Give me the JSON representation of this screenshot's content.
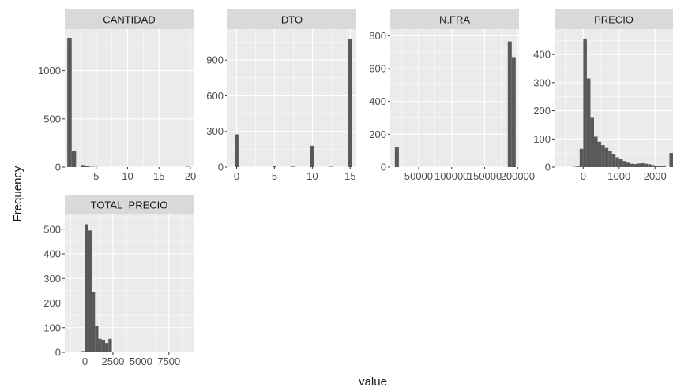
{
  "chart_data": {
    "type": "bar",
    "figure_type": "faceted histogram",
    "xlabel": "value",
    "ylabel": "Frequency",
    "grid": true,
    "facets": [
      {
        "name": "CANTIDAD",
        "xlim": [
          0,
          20.5
        ],
        "ylim": [
          0,
          1430
        ],
        "x_ticks": [
          {
            "v": 5,
            "label": "5"
          },
          {
            "v": 10,
            "label": "10"
          },
          {
            "v": 15,
            "label": "15"
          },
          {
            "v": 20,
            "label": "20"
          }
        ],
        "y_ticks": [
          {
            "v": 0,
            "label": "0"
          },
          {
            "v": 500,
            "label": "500"
          },
          {
            "v": 1000,
            "label": "1000"
          }
        ],
        "bins": [
          {
            "x0": 0.4,
            "x1": 1.1,
            "count": 1340
          },
          {
            "x0": 1.1,
            "x1": 1.8,
            "count": 165
          },
          {
            "x0": 1.8,
            "x1": 2.5,
            "count": 0
          },
          {
            "x0": 2.5,
            "x1": 3.2,
            "count": 22
          },
          {
            "x0": 3.2,
            "x1": 3.9,
            "count": 12
          },
          {
            "x0": 3.9,
            "x1": 4.6,
            "count": 3
          },
          {
            "x0": 4.6,
            "x1": 5.3,
            "count": 2
          },
          {
            "x0": 19.2,
            "x1": 19.9,
            "count": 3
          }
        ]
      },
      {
        "name": "DTO",
        "xlim": [
          -1.2,
          15.8
        ],
        "ylim": [
          0,
          1160
        ],
        "x_ticks": [
          {
            "v": 0,
            "label": "0"
          },
          {
            "v": 5,
            "label": "5"
          },
          {
            "v": 10,
            "label": "10"
          },
          {
            "v": 15,
            "label": "15"
          }
        ],
        "y_ticks": [
          {
            "v": 0,
            "label": "0"
          },
          {
            "v": 300,
            "label": "300"
          },
          {
            "v": 600,
            "label": "600"
          },
          {
            "v": 900,
            "label": "900"
          }
        ],
        "bins": [
          {
            "x0": -0.25,
            "x1": 0.25,
            "count": 275
          },
          {
            "x0": 4.75,
            "x1": 5.25,
            "count": 10
          },
          {
            "x0": 7.25,
            "x1": 7.75,
            "count": 4
          },
          {
            "x0": 9.75,
            "x1": 10.25,
            "count": 180
          },
          {
            "x0": 12.25,
            "x1": 12.75,
            "count": 3
          },
          {
            "x0": 14.75,
            "x1": 15.25,
            "count": 1075
          }
        ]
      },
      {
        "name": "N.FRA",
        "xlim": [
          7000,
          202000
        ],
        "ylim": [
          0,
          840
        ],
        "x_ticks": [
          {
            "v": 50000,
            "label": "50000"
          },
          {
            "v": 100000,
            "label": "100000"
          },
          {
            "v": 150000,
            "label": "150000"
          },
          {
            "v": 200000,
            "label": "200000"
          }
        ],
        "y_ticks": [
          {
            "v": 0,
            "label": "0"
          },
          {
            "v": 200,
            "label": "200"
          },
          {
            "v": 400,
            "label": "400"
          },
          {
            "v": 600,
            "label": "600"
          },
          {
            "v": 800,
            "label": "800"
          }
        ],
        "bins": [
          {
            "x0": 14000,
            "x1": 20000,
            "count": 120
          },
          {
            "x0": 185000,
            "x1": 191000,
            "count": 765
          },
          {
            "x0": 191000,
            "x1": 197000,
            "count": 670
          }
        ]
      },
      {
        "name": "PRECIO",
        "xlim": [
          -800,
          2500
        ],
        "ylim": [
          0,
          490
        ],
        "x_ticks": [
          {
            "v": 0,
            "label": "0"
          },
          {
            "v": 1000,
            "label": "1000"
          },
          {
            "v": 2000,
            "label": "2000"
          }
        ],
        "y_ticks": [
          {
            "v": 0,
            "label": "0"
          },
          {
            "v": 100,
            "label": "100"
          },
          {
            "v": 200,
            "label": "200"
          },
          {
            "v": 300,
            "label": "300"
          },
          {
            "v": 400,
            "label": "400"
          }
        ],
        "bins": [
          {
            "x0": -300,
            "x1": -200,
            "count": 1
          },
          {
            "x0": -200,
            "x1": -100,
            "count": 2
          },
          {
            "x0": -100,
            "x1": 0,
            "count": 65
          },
          {
            "x0": 0,
            "x1": 100,
            "count": 455
          },
          {
            "x0": 100,
            "x1": 200,
            "count": 315
          },
          {
            "x0": 200,
            "x1": 300,
            "count": 175
          },
          {
            "x0": 300,
            "x1": 400,
            "count": 108
          },
          {
            "x0": 400,
            "x1": 500,
            "count": 90
          },
          {
            "x0": 500,
            "x1": 600,
            "count": 78
          },
          {
            "x0": 600,
            "x1": 700,
            "count": 68
          },
          {
            "x0": 700,
            "x1": 800,
            "count": 58
          },
          {
            "x0": 800,
            "x1": 900,
            "count": 45
          },
          {
            "x0": 900,
            "x1": 1000,
            "count": 35
          },
          {
            "x0": 1000,
            "x1": 1100,
            "count": 28
          },
          {
            "x0": 1100,
            "x1": 1200,
            "count": 22
          },
          {
            "x0": 1200,
            "x1": 1300,
            "count": 16
          },
          {
            "x0": 1300,
            "x1": 1400,
            "count": 12
          },
          {
            "x0": 1400,
            "x1": 1500,
            "count": 11
          },
          {
            "x0": 1500,
            "x1": 1600,
            "count": 13
          },
          {
            "x0": 1600,
            "x1": 1700,
            "count": 14
          },
          {
            "x0": 1700,
            "x1": 1800,
            "count": 12
          },
          {
            "x0": 1800,
            "x1": 1900,
            "count": 10
          },
          {
            "x0": 1900,
            "x1": 2000,
            "count": 7
          },
          {
            "x0": 2000,
            "x1": 2100,
            "count": 5
          },
          {
            "x0": 2100,
            "x1": 2200,
            "count": 3
          },
          {
            "x0": 2200,
            "x1": 2300,
            "count": 3
          },
          {
            "x0": 2400,
            "x1": 2500,
            "count": 50
          }
        ]
      },
      {
        "name": "TOTAL_PRECIO",
        "xlim": [
          -1800,
          9700
        ],
        "ylim": [
          0,
          560
        ],
        "x_ticks": [
          {
            "v": 0,
            "label": "0"
          },
          {
            "v": 2500,
            "label": "2500"
          },
          {
            "v": 5000,
            "label": "5000"
          },
          {
            "v": 7500,
            "label": "7500"
          }
        ],
        "y_ticks": [
          {
            "v": 0,
            "label": "0"
          },
          {
            "v": 100,
            "label": "100"
          },
          {
            "v": 200,
            "label": "200"
          },
          {
            "v": 300,
            "label": "300"
          },
          {
            "v": 400,
            "label": "400"
          },
          {
            "v": 500,
            "label": "500"
          }
        ],
        "bins": [
          {
            "x0": -600,
            "x1": -300,
            "count": 2
          },
          {
            "x0": -300,
            "x1": 0,
            "count": 5
          },
          {
            "x0": 0,
            "x1": 300,
            "count": 520
          },
          {
            "x0": 300,
            "x1": 600,
            "count": 495
          },
          {
            "x0": 600,
            "x1": 900,
            "count": 245
          },
          {
            "x0": 900,
            "x1": 1200,
            "count": 108
          },
          {
            "x0": 1200,
            "x1": 1500,
            "count": 55
          },
          {
            "x0": 1500,
            "x1": 1800,
            "count": 50
          },
          {
            "x0": 1800,
            "x1": 2100,
            "count": 38
          },
          {
            "x0": 2100,
            "x1": 2400,
            "count": 55
          },
          {
            "x0": 2400,
            "x1": 2700,
            "count": 3
          },
          {
            "x0": 2700,
            "x1": 3000,
            "count": 2
          },
          {
            "x0": 3900,
            "x1": 4200,
            "count": 2
          },
          {
            "x0": 4800,
            "x1": 5100,
            "count": 2
          },
          {
            "x0": 5100,
            "x1": 5400,
            "count": 2
          },
          {
            "x0": 9300,
            "x1": 9600,
            "count": 2
          }
        ]
      }
    ]
  },
  "colors": {
    "panel_bg": "#ebebeb",
    "strip_bg": "#d9d9d9",
    "grid_major": "#ffffff",
    "bar_fill": "#595959",
    "text": "#1a1a1a",
    "tick_text": "#4d4d4d"
  }
}
